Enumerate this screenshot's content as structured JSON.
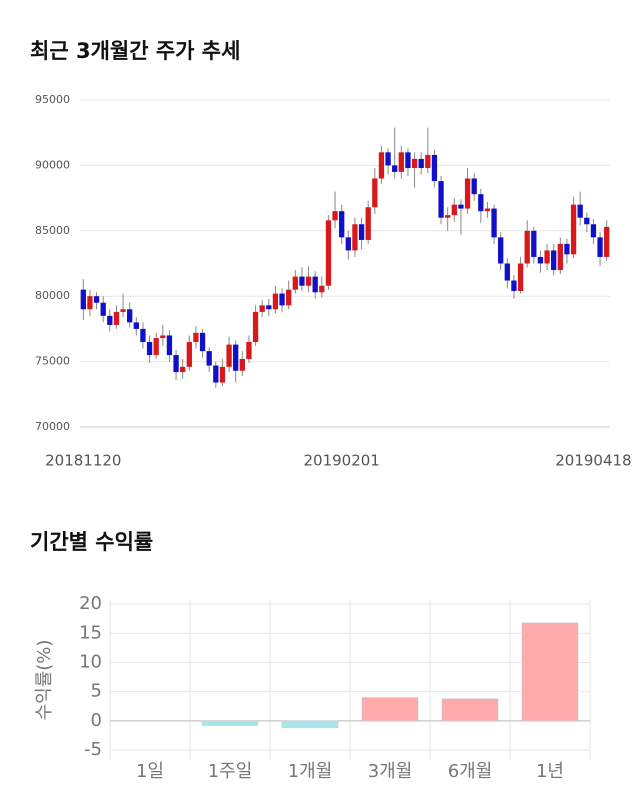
{
  "chart_data": [
    {
      "type": "candlestick",
      "title": "최근 3개월간 주가 추세",
      "categories": [
        "20181120",
        null,
        null,
        null,
        null,
        null,
        null,
        null,
        null,
        null,
        null,
        null,
        null,
        null,
        null,
        null,
        null,
        null,
        null,
        null,
        null,
        null,
        null,
        null,
        null,
        null,
        null,
        null,
        null,
        null,
        null,
        null,
        null,
        null,
        null,
        null,
        null,
        null,
        null,
        "20190201",
        null,
        null,
        null,
        null,
        null,
        null,
        null,
        null,
        null,
        null,
        null,
        null,
        null,
        null,
        null,
        null,
        null,
        null,
        null,
        null,
        null,
        null,
        null,
        null,
        null,
        null,
        null,
        null,
        null,
        null,
        null,
        null,
        null,
        null,
        null,
        null,
        null,
        "20190418",
        null,
        null
      ],
      "open": [
        80500,
        79000,
        80000,
        79500,
        78500,
        77800,
        78800,
        79000,
        78000,
        77500,
        76500,
        75500,
        76800,
        77000,
        75500,
        74200,
        74600,
        76500,
        77200,
        75800,
        74700,
        73400,
        74600,
        76300,
        74300,
        75200,
        76500,
        78800,
        79300,
        79000,
        80200,
        79300,
        80500,
        81500,
        80800,
        81500,
        80300,
        80800,
        85800,
        86500,
        84500,
        83500,
        85500,
        84300,
        86800,
        89000,
        91000,
        90000,
        89500,
        91000,
        89800,
        90500,
        89800,
        90800,
        88800,
        86000,
        86200,
        87000,
        86700,
        89000,
        87800,
        86500,
        86700,
        84500,
        82500,
        81200,
        80400,
        82500,
        85000,
        83000,
        82500,
        83500,
        82000,
        84000,
        83200,
        87000,
        86000,
        85500,
        84500,
        83000
      ],
      "high": [
        81300,
        80500,
        80300,
        80000,
        79000,
        79300,
        80200,
        79500,
        78400,
        78000,
        77000,
        77200,
        77800,
        77400,
        75900,
        75200,
        77000,
        77700,
        77500,
        76100,
        75000,
        75200,
        76900,
        76600,
        75800,
        77000,
        79300,
        79700,
        79800,
        80800,
        80600,
        81200,
        82000,
        82200,
        82300,
        81900,
        81500,
        86200,
        88000,
        87000,
        85000,
        86000,
        86000,
        87300,
        89800,
        91500,
        91300,
        92900,
        91500,
        91300,
        91000,
        91000,
        92900,
        91200,
        89200,
        86800,
        87500,
        87400,
        89800,
        89400,
        88200,
        87200,
        87000,
        84900,
        82900,
        81600,
        83000,
        85800,
        85300,
        83500,
        84000,
        84000,
        84500,
        84400,
        87600,
        88000,
        86400,
        85900,
        84900,
        85800
      ],
      "low": [
        78200,
        78500,
        79000,
        78000,
        77300,
        77500,
        78400,
        77600,
        77000,
        76000,
        74900,
        75200,
        76200,
        75000,
        73600,
        73700,
        74300,
        76000,
        75300,
        74200,
        73000,
        73100,
        74200,
        73400,
        73900,
        74900,
        76200,
        78400,
        78500,
        78700,
        78800,
        79000,
        80200,
        80400,
        80300,
        79800,
        79900,
        80500,
        85200,
        84000,
        82800,
        83000,
        83600,
        84000,
        86300,
        88600,
        89300,
        89000,
        89000,
        89200,
        88300,
        89300,
        89400,
        88300,
        85500,
        85000,
        85700,
        84700,
        86300,
        87300,
        85600,
        86000,
        84000,
        82000,
        80600,
        79800,
        80200,
        82200,
        82500,
        81800,
        82000,
        81600,
        81700,
        82500,
        82900,
        85400,
        84900,
        84000,
        82300,
        82700
      ],
      "close": [
        79000,
        80000,
        79500,
        78500,
        77800,
        78800,
        79000,
        78000,
        77500,
        76500,
        75500,
        76800,
        77000,
        75500,
        74200,
        74600,
        76500,
        77200,
        75800,
        74700,
        73400,
        74600,
        76300,
        74300,
        75200,
        76500,
        78800,
        79300,
        79000,
        80200,
        79300,
        80500,
        81500,
        80800,
        81500,
        80300,
        80800,
        85800,
        86500,
        84500,
        83500,
        85500,
        84300,
        86800,
        89000,
        91000,
        90000,
        89500,
        91000,
        89800,
        90500,
        89800,
        90800,
        88800,
        86000,
        86200,
        87000,
        86700,
        89000,
        87800,
        86500,
        86700,
        84500,
        82500,
        81200,
        80400,
        82500,
        85000,
        83000,
        82500,
        83500,
        82000,
        84000,
        83200,
        87000,
        86000,
        85500,
        84500,
        83000,
        85300
      ],
      "up_color": "#d7191c",
      "down_color": "#1010c8",
      "ylim": [
        70000,
        95000
      ],
      "yticks": [
        70000,
        75000,
        80000,
        85000,
        90000,
        95000
      ],
      "grid": true
    },
    {
      "type": "bar",
      "title": "기간별 수익률",
      "ylabel": "수익률(%)",
      "categories": [
        "1일",
        "1주일",
        "1개월",
        "3개월",
        "6개월",
        "1년"
      ],
      "values": [
        0,
        -0.8,
        -1.2,
        4.0,
        3.8,
        16.8
      ],
      "colors": [
        "#ffaaaa",
        "#a8e4ec",
        "#a8e4ec",
        "#ffaaaa",
        "#ffaaaa",
        "#ffaaaa"
      ],
      "ylim": [
        -6.7,
        20.7
      ],
      "yticks": [
        -5,
        0,
        5,
        10,
        15,
        20
      ],
      "grid": true
    }
  ]
}
